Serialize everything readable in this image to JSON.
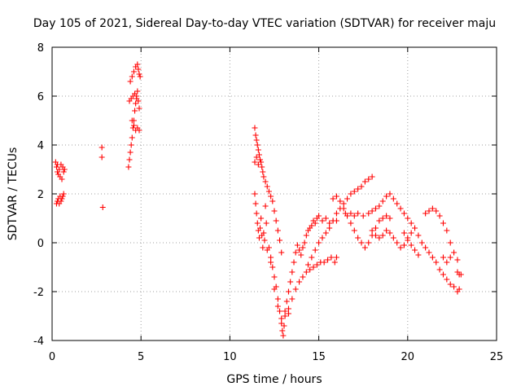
{
  "chart_data": {
    "type": "scatter",
    "title": "Day 105 of 2021, Sidereal Day-to-day VTEC variation (SDTVAR) for receiver maju",
    "xlabel": "GPS time / hours",
    "ylabel": "SDTVAR / TECUs",
    "xlim": [
      0,
      25
    ],
    "ylim": [
      -4,
      8
    ],
    "xticks": [
      0,
      5,
      10,
      15,
      20,
      25
    ],
    "yticks": [
      -4,
      -2,
      0,
      2,
      4,
      6,
      8
    ],
    "grid": true,
    "marker": "+",
    "color": "#ff0000",
    "series": [
      {
        "name": "SDTVAR",
        "points": [
          [
            0.2,
            3.3
          ],
          [
            0.25,
            3.1
          ],
          [
            0.3,
            2.9
          ],
          [
            0.3,
            3.2
          ],
          [
            0.35,
            2.8
          ],
          [
            0.4,
            3.0
          ],
          [
            0.45,
            2.7
          ],
          [
            0.5,
            3.2
          ],
          [
            0.55,
            2.6
          ],
          [
            0.6,
            3.1
          ],
          [
            0.65,
            2.9
          ],
          [
            0.7,
            3.0
          ],
          [
            0.25,
            1.6
          ],
          [
            0.3,
            1.7
          ],
          [
            0.35,
            1.8
          ],
          [
            0.4,
            1.6
          ],
          [
            0.45,
            1.9
          ],
          [
            0.5,
            1.7
          ],
          [
            0.55,
            1.8
          ],
          [
            0.6,
            1.9
          ],
          [
            0.65,
            2.0
          ],
          [
            2.8,
            3.9
          ],
          [
            2.8,
            3.5
          ],
          [
            2.85,
            1.45
          ],
          [
            4.3,
            3.1
          ],
          [
            4.35,
            3.4
          ],
          [
            4.4,
            3.7
          ],
          [
            4.45,
            4.0
          ],
          [
            4.5,
            4.3
          ],
          [
            4.55,
            4.7
          ],
          [
            4.6,
            5.0
          ],
          [
            4.65,
            5.4
          ],
          [
            4.7,
            5.7
          ],
          [
            4.75,
            6.0
          ],
          [
            4.8,
            6.2
          ],
          [
            4.85,
            5.8
          ],
          [
            4.9,
            5.5
          ],
          [
            4.5,
            5.0
          ],
          [
            4.6,
            4.8
          ],
          [
            4.7,
            4.6
          ],
          [
            4.8,
            4.7
          ],
          [
            4.9,
            4.6
          ],
          [
            4.35,
            5.8
          ],
          [
            4.45,
            5.9
          ],
          [
            4.55,
            6.0
          ],
          [
            4.65,
            6.1
          ],
          [
            4.75,
            5.9
          ],
          [
            4.4,
            6.6
          ],
          [
            4.5,
            6.8
          ],
          [
            4.6,
            7.0
          ],
          [
            4.7,
            7.2
          ],
          [
            4.8,
            7.3
          ],
          [
            4.85,
            7.1
          ],
          [
            4.9,
            6.9
          ],
          [
            4.95,
            6.8
          ],
          [
            11.4,
            4.7
          ],
          [
            11.45,
            4.4
          ],
          [
            11.5,
            4.2
          ],
          [
            11.55,
            4.0
          ],
          [
            11.6,
            3.8
          ],
          [
            11.65,
            3.6
          ],
          [
            11.7,
            3.4
          ],
          [
            11.75,
            3.3
          ],
          [
            11.8,
            3.1
          ],
          [
            11.85,
            2.9
          ],
          [
            11.9,
            2.7
          ],
          [
            12.0,
            2.5
          ],
          [
            12.1,
            2.3
          ],
          [
            12.2,
            2.1
          ],
          [
            12.3,
            1.9
          ],
          [
            12.4,
            1.7
          ],
          [
            12.5,
            1.3
          ],
          [
            12.6,
            0.9
          ],
          [
            12.7,
            0.5
          ],
          [
            12.8,
            0.1
          ],
          [
            12.9,
            -0.4
          ],
          [
            11.4,
            3.3
          ],
          [
            11.5,
            3.5
          ],
          [
            11.6,
            3.2
          ],
          [
            11.4,
            2.0
          ],
          [
            11.45,
            1.6
          ],
          [
            11.5,
            1.2
          ],
          [
            11.55,
            0.8
          ],
          [
            11.6,
            0.5
          ],
          [
            11.65,
            0.2
          ],
          [
            11.7,
            0.6
          ],
          [
            11.75,
            1.0
          ],
          [
            11.8,
            0.3
          ],
          [
            11.85,
            -0.2
          ],
          [
            11.9,
            0.4
          ],
          [
            11.95,
            0.1
          ],
          [
            12.0,
            1.5
          ],
          [
            12.05,
            0.8
          ],
          [
            12.1,
            -0.3
          ],
          [
            12.2,
            -0.2
          ],
          [
            12.3,
            -0.6
          ],
          [
            12.4,
            -1.0
          ],
          [
            12.5,
            -1.4
          ],
          [
            12.6,
            -1.8
          ],
          [
            12.7,
            -2.3
          ],
          [
            12.8,
            -2.8
          ],
          [
            12.9,
            -3.3
          ],
          [
            12.95,
            -3.6
          ],
          [
            13.0,
            -3.8
          ],
          [
            13.05,
            -3.4
          ],
          [
            12.3,
            -0.8
          ],
          [
            12.5,
            -1.9
          ],
          [
            12.7,
            -2.6
          ],
          [
            12.9,
            -3.1
          ],
          [
            13.1,
            -3.0
          ],
          [
            13.3,
            -2.9
          ],
          [
            13.1,
            -2.8
          ],
          [
            13.2,
            -2.4
          ],
          [
            13.3,
            -2.0
          ],
          [
            13.4,
            -1.6
          ],
          [
            13.5,
            -1.2
          ],
          [
            13.6,
            -0.8
          ],
          [
            13.7,
            -0.4
          ],
          [
            13.8,
            -0.1
          ],
          [
            13.9,
            -0.3
          ],
          [
            14.0,
            -0.5
          ],
          [
            14.1,
            -0.2
          ],
          [
            14.2,
            0.0
          ],
          [
            14.3,
            0.3
          ],
          [
            14.4,
            0.5
          ],
          [
            14.5,
            0.6
          ],
          [
            14.6,
            0.7
          ],
          [
            14.7,
            0.9
          ],
          [
            14.8,
            0.8
          ],
          [
            14.9,
            1.0
          ],
          [
            15.0,
            1.1
          ],
          [
            15.2,
            0.9
          ],
          [
            15.4,
            1.0
          ],
          [
            15.6,
            0.8
          ],
          [
            15.8,
            0.9
          ],
          [
            16.0,
            0.9
          ],
          [
            13.3,
            -2.7
          ],
          [
            13.5,
            -2.3
          ],
          [
            13.7,
            -1.9
          ],
          [
            13.9,
            -1.6
          ],
          [
            14.1,
            -1.4
          ],
          [
            14.3,
            -1.2
          ],
          [
            14.5,
            -1.1
          ],
          [
            14.7,
            -1.0
          ],
          [
            14.9,
            -0.9
          ],
          [
            15.1,
            -0.8
          ],
          [
            15.3,
            -0.8
          ],
          [
            15.5,
            -0.7
          ],
          [
            15.7,
            -0.6
          ],
          [
            15.9,
            -0.8
          ],
          [
            16.0,
            -0.6
          ],
          [
            14.4,
            -0.9
          ],
          [
            14.6,
            -0.6
          ],
          [
            14.8,
            -0.3
          ],
          [
            15.0,
            0.0
          ],
          [
            15.2,
            0.2
          ],
          [
            15.4,
            0.4
          ],
          [
            15.6,
            0.6
          ],
          [
            15.8,
            0.9
          ],
          [
            16.0,
            1.2
          ],
          [
            16.2,
            1.4
          ],
          [
            16.4,
            1.6
          ],
          [
            16.6,
            1.8
          ],
          [
            16.8,
            2.0
          ],
          [
            17.0,
            2.1
          ],
          [
            17.2,
            2.2
          ],
          [
            17.4,
            2.3
          ],
          [
            17.6,
            2.5
          ],
          [
            17.8,
            2.6
          ],
          [
            18.0,
            2.7
          ],
          [
            15.8,
            1.8
          ],
          [
            16.0,
            1.9
          ],
          [
            16.2,
            1.7
          ],
          [
            16.4,
            1.4
          ],
          [
            16.6,
            1.1
          ],
          [
            16.8,
            0.8
          ],
          [
            17.0,
            0.5
          ],
          [
            17.2,
            0.2
          ],
          [
            17.4,
            0.0
          ],
          [
            17.6,
            -0.2
          ],
          [
            17.8,
            0.0
          ],
          [
            18.0,
            0.3
          ],
          [
            18.2,
            0.6
          ],
          [
            18.4,
            0.9
          ],
          [
            18.6,
            1.0
          ],
          [
            18.8,
            1.1
          ],
          [
            19.0,
            1.0
          ],
          [
            16.5,
            1.2
          ],
          [
            16.8,
            1.2
          ],
          [
            17.0,
            1.1
          ],
          [
            17.2,
            1.2
          ],
          [
            17.5,
            1.1
          ],
          [
            17.8,
            1.2
          ],
          [
            18.0,
            1.3
          ],
          [
            18.2,
            1.4
          ],
          [
            18.4,
            1.5
          ],
          [
            18.6,
            1.7
          ],
          [
            18.8,
            1.9
          ],
          [
            19.0,
            2.0
          ],
          [
            19.2,
            1.8
          ],
          [
            19.4,
            1.6
          ],
          [
            19.6,
            1.4
          ],
          [
            19.8,
            1.2
          ],
          [
            20.0,
            1.0
          ],
          [
            20.2,
            0.8
          ],
          [
            18.0,
            0.5
          ],
          [
            18.2,
            0.3
          ],
          [
            18.4,
            0.2
          ],
          [
            18.6,
            0.3
          ],
          [
            18.8,
            0.5
          ],
          [
            19.0,
            0.4
          ],
          [
            19.2,
            0.2
          ],
          [
            19.4,
            0.0
          ],
          [
            19.6,
            -0.2
          ],
          [
            19.8,
            -0.1
          ],
          [
            20.0,
            0.1
          ],
          [
            20.2,
            0.4
          ],
          [
            20.4,
            0.6
          ],
          [
            20.6,
            0.3
          ],
          [
            20.8,
            0.0
          ],
          [
            21.0,
            -0.2
          ],
          [
            21.2,
            -0.4
          ],
          [
            21.4,
            -0.6
          ],
          [
            21.6,
            -0.8
          ],
          [
            21.8,
            -1.1
          ],
          [
            22.0,
            -1.3
          ],
          [
            22.2,
            -1.5
          ],
          [
            22.4,
            -1.7
          ],
          [
            22.6,
            -1.8
          ],
          [
            22.8,
            -2.0
          ],
          [
            22.9,
            -1.9
          ],
          [
            19.8,
            0.4
          ],
          [
            20.0,
            0.2
          ],
          [
            20.2,
            -0.1
          ],
          [
            20.4,
            -0.3
          ],
          [
            20.6,
            -0.5
          ],
          [
            21.0,
            1.2
          ],
          [
            21.2,
            1.3
          ],
          [
            21.4,
            1.4
          ],
          [
            21.6,
            1.3
          ],
          [
            21.8,
            1.1
          ],
          [
            22.0,
            0.8
          ],
          [
            22.2,
            0.5
          ],
          [
            22.4,
            0.0
          ],
          [
            22.6,
            -0.4
          ],
          [
            22.8,
            -0.7
          ],
          [
            22.0,
            -0.6
          ],
          [
            22.2,
            -0.8
          ],
          [
            22.4,
            -0.6
          ],
          [
            22.8,
            -1.2
          ],
          [
            22.9,
            -1.3
          ],
          [
            23.0,
            -1.3
          ]
        ]
      }
    ]
  }
}
